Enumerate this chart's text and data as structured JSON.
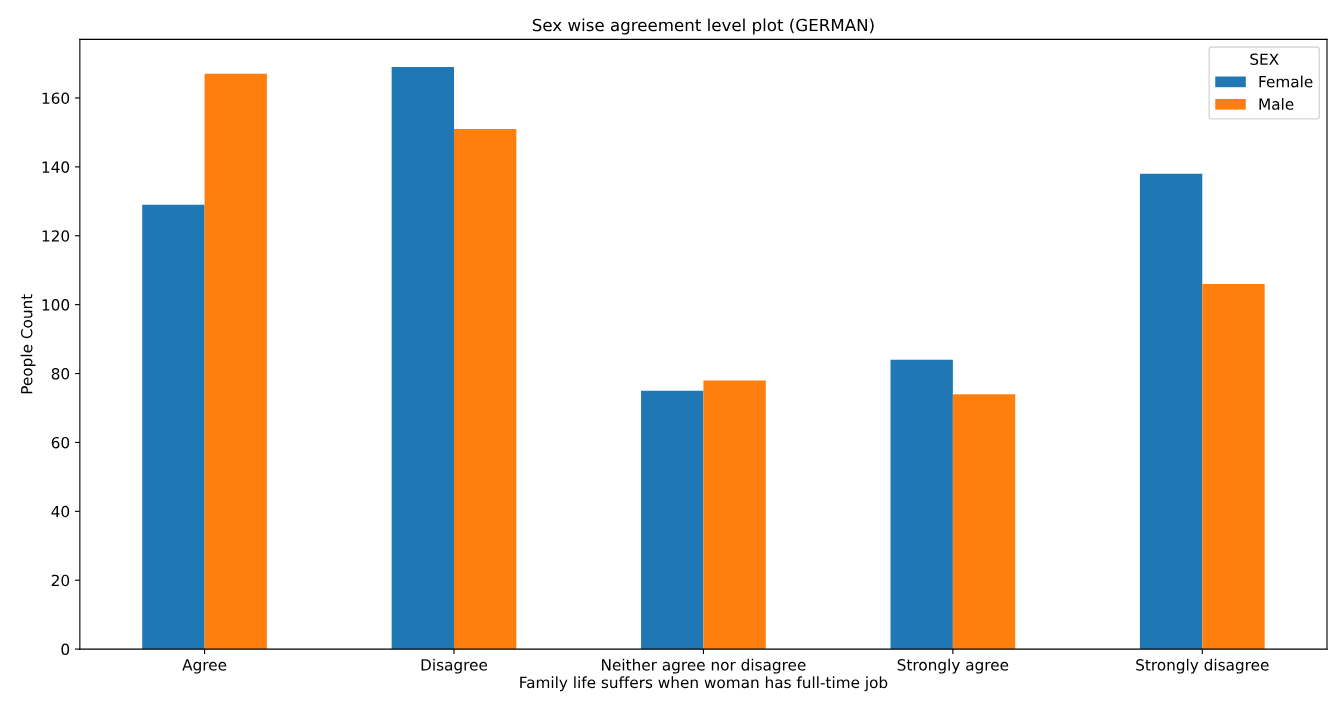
{
  "chart_data": {
    "type": "bar",
    "title": "Sex wise agreement level plot (GERMAN)",
    "xlabel": "Family life suffers when woman has full-time job",
    "ylabel": "People Count",
    "categories": [
      "Agree",
      "Disagree",
      "Neither agree nor disagree",
      "Strongly agree",
      "Strongly disagree"
    ],
    "series": [
      {
        "name": "Female",
        "color": "#1f77b4",
        "values": [
          129,
          169,
          75,
          84,
          138
        ]
      },
      {
        "name": "Male",
        "color": "#ff7f0e",
        "values": [
          167,
          151,
          78,
          74,
          106
        ]
      }
    ],
    "legend_title": "SEX",
    "legend": "top right",
    "grid": false,
    "ylim": [
      0,
      177
    ],
    "yticks": [
      0,
      20,
      40,
      60,
      80,
      100,
      120,
      140,
      160
    ]
  }
}
